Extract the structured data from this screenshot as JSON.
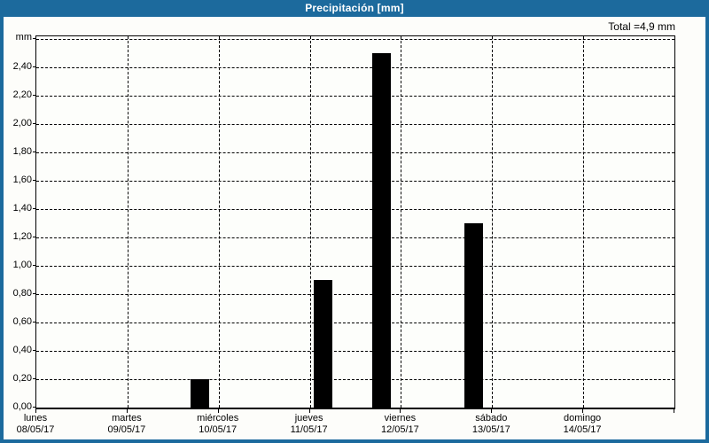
{
  "title_bar": {
    "title": "Precipitación [mm]"
  },
  "summary": {
    "total_label": "Total =4,9 mm"
  },
  "chart_data": {
    "type": "bar",
    "title": "Precipitación [mm]",
    "ylabel": "mm",
    "unit_corner_label": "mm",
    "total_annotation": "Total =4,9 mm",
    "total_value_mm": 4.9,
    "categories": [
      {
        "day": "lunes",
        "date": "08/05/17"
      },
      {
        "day": "martes",
        "date": "09/05/17"
      },
      {
        "day": "miércoles",
        "date": "10/05/17"
      },
      {
        "day": "jueves",
        "date": "11/05/17"
      },
      {
        "day": "viernes",
        "date": "12/05/17"
      },
      {
        "day": "sábado",
        "date": "13/05/17"
      },
      {
        "day": "domingo",
        "date": "14/05/17"
      }
    ],
    "values": [
      0,
      0,
      0.2,
      0.9,
      2.5,
      1.3,
      0
    ],
    "bars": [
      {
        "day_index": 2,
        "x_days": 1.79,
        "value": 0.2
      },
      {
        "day_index": 3,
        "x_days": 3.14,
        "value": 0.9
      },
      {
        "day_index": 4,
        "x_days": 3.79,
        "value": 2.5
      },
      {
        "day_index": 5,
        "x_days": 4.8,
        "value": 1.3
      }
    ],
    "ylim": [
      0,
      2.62
    ],
    "ytick_step": 0.2,
    "ytick_label_max": 2.4,
    "decimal_separator": ",",
    "grid": "dashed",
    "legend": "none",
    "bar_color": "#000000",
    "days_shown": 7
  },
  "colors": {
    "frame_blue": "#1C6A9D",
    "title_text": "#FFFFFF",
    "plot_background": "#FDFEFB",
    "axis_and_bars": "#000000"
  }
}
